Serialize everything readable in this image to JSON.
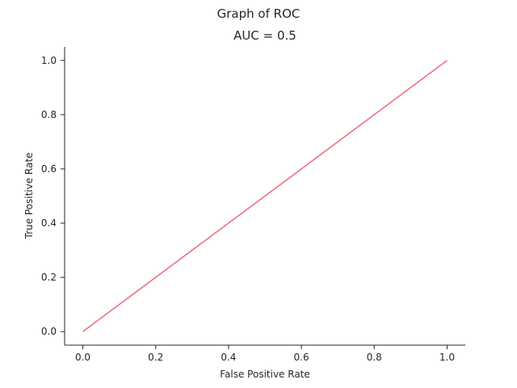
{
  "figure": {
    "suptitle": "Graph of ROC"
  },
  "chart_data": {
    "type": "line",
    "title": "AUC = 0.5",
    "xlabel": "False Positive Rate",
    "ylabel": "True Positive Rate",
    "xlim": [
      -0.05,
      1.05
    ],
    "ylim": [
      -0.05,
      1.05
    ],
    "xticks": [
      0.0,
      0.2,
      0.4,
      0.6,
      0.8,
      1.0
    ],
    "xtick_labels": [
      "0.0",
      "0.2",
      "0.4",
      "0.6",
      "0.8",
      "1.0"
    ],
    "yticks": [
      0.0,
      0.2,
      0.4,
      0.6,
      0.8,
      1.0
    ],
    "ytick_labels": [
      "0.0",
      "0.2",
      "0.4",
      "0.6",
      "0.8",
      "1.0"
    ],
    "grid": false,
    "legend": false,
    "series": [
      {
        "x": [
          0.0,
          1.0
        ],
        "y": [
          0.0,
          1.0
        ],
        "color": "#f07080"
      }
    ]
  }
}
